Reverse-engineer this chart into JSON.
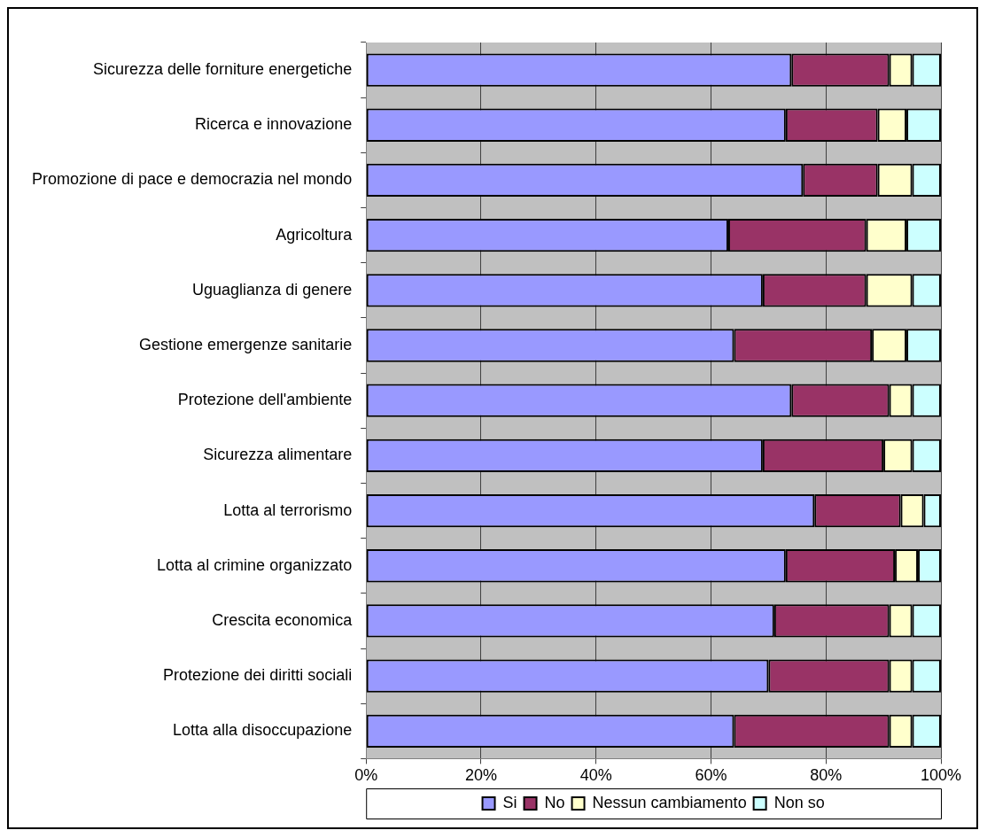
{
  "chart_data": {
    "type": "bar",
    "orientation": "horizontal",
    "stacked": true,
    "categories": [
      "Sicurezza delle forniture energetiche",
      "Ricerca e innovazione",
      "Promozione di pace e democrazia nel mondo",
      "Agricoltura",
      "Uguaglianza di genere",
      "Gestione emergenze sanitarie",
      "Protezione dell'ambiente",
      "Sicurezza alimentare",
      "Lotta al terrorismo",
      "Lotta al crimine organizzato",
      "Crescita economica",
      "Protezione dei diritti sociali",
      "Lotta alla disoccupazione"
    ],
    "series": [
      {
        "name": "Si",
        "color": "#9999ff",
        "values": [
          74,
          73,
          76,
          63,
          69,
          64,
          74,
          69,
          78,
          73,
          71,
          70,
          64
        ]
      },
      {
        "name": "No",
        "color": "#993366",
        "values": [
          17,
          16,
          13,
          24,
          18,
          24,
          17,
          21,
          15,
          19,
          20,
          21,
          27
        ]
      },
      {
        "name": "Nessun cambiamento",
        "color": "#ffffcc",
        "values": [
          4,
          5,
          6,
          7,
          8,
          6,
          4,
          5,
          4,
          4,
          4,
          4,
          4
        ]
      },
      {
        "name": "Non so",
        "color": "#ccffff",
        "values": [
          5,
          6,
          5,
          6,
          5,
          6,
          5,
          5,
          3,
          4,
          5,
          5,
          5
        ]
      }
    ],
    "xlim": [
      0,
      100
    ],
    "xticks": [
      {
        "value": 0,
        "label": "0%"
      },
      {
        "value": 20,
        "label": "20%"
      },
      {
        "value": 40,
        "label": "40%"
      },
      {
        "value": 60,
        "label": "60%"
      },
      {
        "value": 80,
        "label": "80%"
      },
      {
        "value": 100,
        "label": "100%"
      }
    ],
    "grid": "x",
    "legend": "bottom"
  }
}
